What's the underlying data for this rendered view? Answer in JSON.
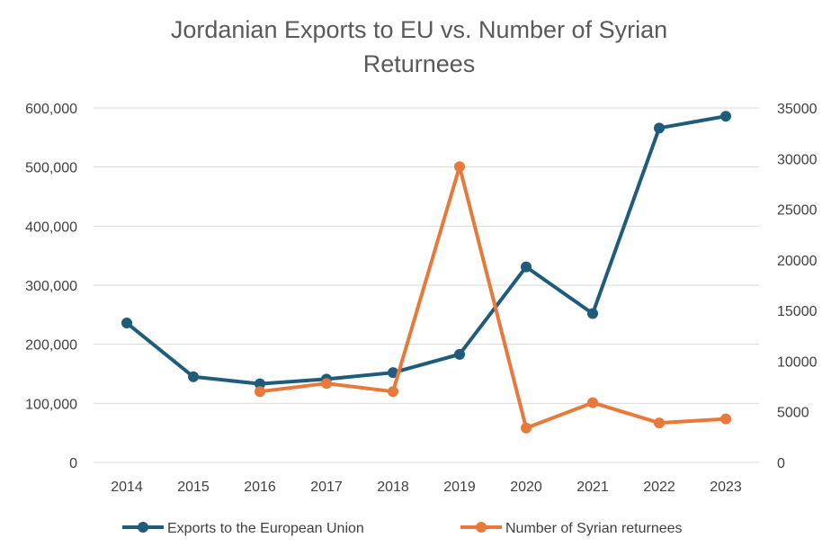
{
  "chart_data": {
    "type": "line",
    "title_line1": "Jordanian Exports to EU vs. Number of Syrian",
    "title_line2": "Returnees",
    "categories": [
      "2014",
      "2015",
      "2016",
      "2017",
      "2018",
      "2019",
      "2020",
      "2021",
      "2022",
      "2023"
    ],
    "y_left": {
      "min": 0,
      "max": 600000,
      "step": 100000,
      "tick_labels": [
        "0",
        "100,000",
        "200,000",
        "300,000",
        "400,000",
        "500,000",
        "600,000"
      ]
    },
    "y_right": {
      "min": 0,
      "max": 35000,
      "step": 5000,
      "tick_labels": [
        "0",
        "5000",
        "10000",
        "15000",
        "20000",
        "25000",
        "30000",
        "35000"
      ]
    },
    "grid": true,
    "legend_position": "bottom",
    "series": [
      {
        "name": "Exports to the European Union",
        "axis": "left",
        "color": "#1f5b7a",
        "values": [
          236000,
          145000,
          133000,
          141000,
          152000,
          183000,
          331000,
          252000,
          566000,
          586000
        ]
      },
      {
        "name": "Number of Syrian returnees",
        "axis": "right",
        "color": "#e8793a",
        "values": [
          null,
          null,
          7000,
          7800,
          7000,
          29200,
          3400,
          5900,
          3900,
          4300
        ]
      }
    ]
  }
}
